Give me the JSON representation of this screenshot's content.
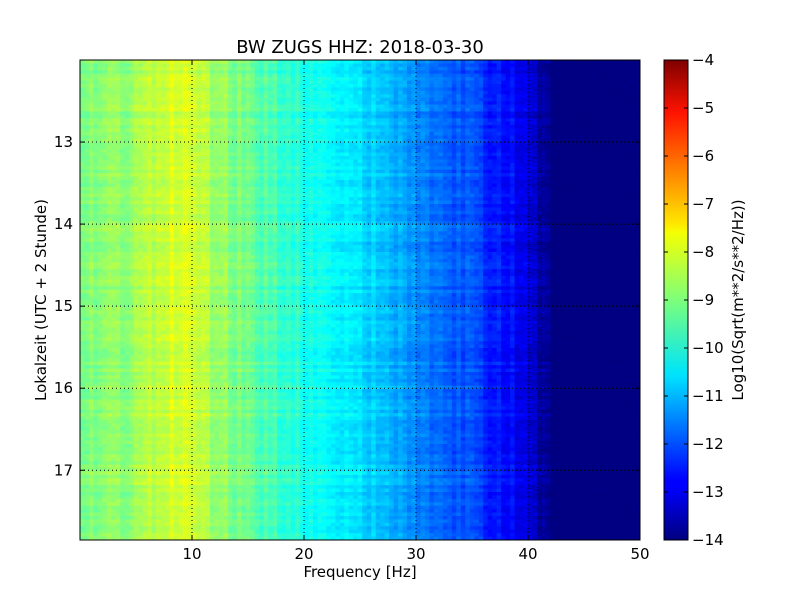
{
  "chart_data": {
    "type": "heatmap",
    "title": "BW ZUGS HHZ: 2018-03-30",
    "xlabel": "Frequency [Hz]",
    "ylabel": "Lokalzeit (UTC + 2 Stunde)",
    "colorbar_label": "Log10(Sqrt(m**2/s**2/Hz))",
    "xlim": [
      0,
      50
    ],
    "ylim": [
      12.0,
      17.85
    ],
    "y_inverted": true,
    "x_ticks": [
      10,
      20,
      30,
      40,
      50
    ],
    "x_tick_labels": [
      "10",
      "20",
      "30",
      "40",
      "50"
    ],
    "y_ticks": [
      13,
      14,
      15,
      16,
      17
    ],
    "y_tick_labels": [
      "13",
      "14",
      "15",
      "16",
      "17"
    ],
    "grid": true,
    "colormap": "jet",
    "clim": [
      -14,
      -4
    ],
    "colorbar_ticks": [
      -4,
      -5,
      -6,
      -7,
      -8,
      -9,
      -10,
      -11,
      -12,
      -13,
      -14
    ],
    "colorbar_tick_labels": [
      "−4",
      "−5",
      "−6",
      "−7",
      "−8",
      "−9",
      "−10",
      "−11",
      "−12",
      "−13",
      "−14"
    ],
    "frequency_profile": {
      "frequency_hz": [
        0,
        2,
        4,
        6,
        8,
        9,
        10,
        12,
        14,
        16,
        18,
        20,
        22,
        24,
        26,
        28,
        30,
        32,
        34,
        36,
        38,
        40,
        41,
        42,
        44,
        46,
        48,
        50
      ],
      "log10_amplitude": [
        -8.9,
        -8.9,
        -8.8,
        -8.5,
        -8.2,
        -8.1,
        -8.3,
        -8.6,
        -9.0,
        -9.4,
        -9.7,
        -10.0,
        -10.2,
        -10.4,
        -10.7,
        -11.0,
        -11.3,
        -11.6,
        -11.9,
        -12.2,
        -12.6,
        -13.0,
        -13.6,
        -14.0,
        -14.0,
        -14.0,
        -14.0,
        -14.0
      ]
    }
  }
}
